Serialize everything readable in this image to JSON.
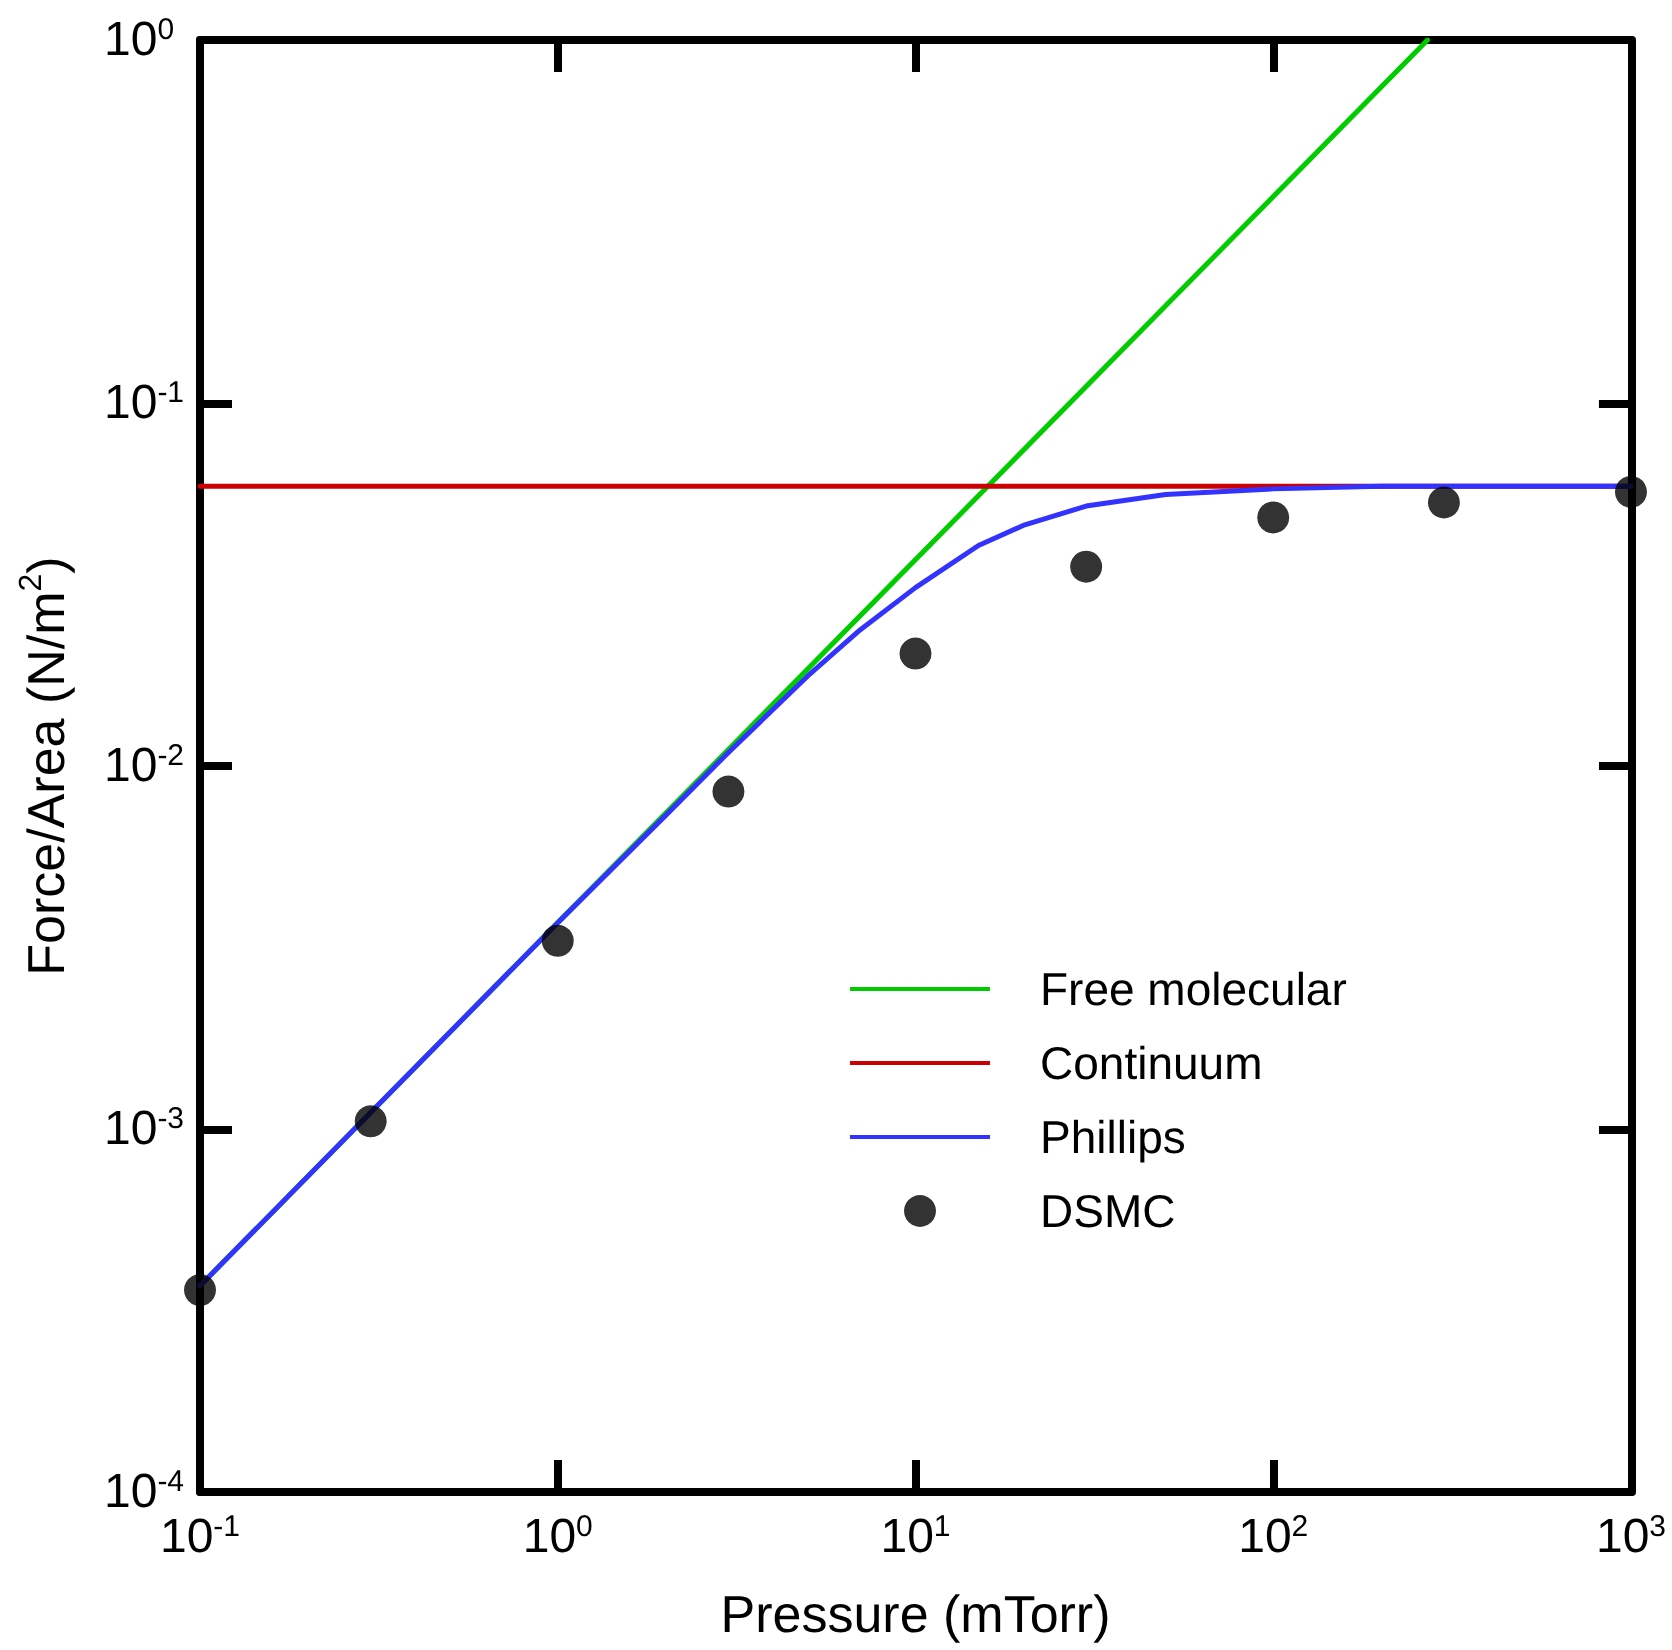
{
  "chart_data": {
    "type": "line",
    "xlabel": "Pressure (mTorr)",
    "ylabel": "Force/Area (N/m$^{2}$)",
    "log": "xy",
    "grid": false,
    "legend": "right",
    "marker": "none",
    "xlim": [
      0.1,
      1000
    ],
    "ylim": [
      0.0001,
      1
    ],
    "xticks": [
      {
        "value": 0.1,
        "label": "10$^{-1}$"
      },
      {
        "value": 1,
        "label": "10$^{0}$"
      },
      {
        "value": 10,
        "label": "10$^{1}$"
      },
      {
        "value": 100,
        "label": "10$^{2}$"
      },
      {
        "value": 1000,
        "label": "10$^{3}$"
      }
    ],
    "yticks": [
      {
        "value": 0.0001,
        "label": "10$^{-4}$"
      },
      {
        "value": 0.001,
        "label": "10$^{-3}$"
      },
      {
        "value": 0.01,
        "label": "10$^{-2}$"
      },
      {
        "value": 0.1,
        "label": "10$^{-1}$"
      },
      {
        "value": 1,
        "label": "10$^{0}$"
      }
    ],
    "series": [
      {
        "name": "Free molecular",
        "color": "#00cc00",
        "x": [
          0.1,
          270
        ],
        "values": [
          0.00037,
          1
        ]
      },
      {
        "name": "Continuum",
        "color": "#cc0000",
        "x": [
          0.1,
          1000
        ],
        "values": [
          0.059,
          0.059
        ]
      },
      {
        "name": "Phillips",
        "color": "#3333ff",
        "x": [
          0.1,
          0.3,
          1,
          2,
          3,
          5,
          7,
          10,
          15,
          20,
          30,
          50,
          100,
          200,
          1000
        ],
        "values": [
          0.00037,
          0.00111,
          0.0037,
          0.0073,
          0.0109,
          0.0177,
          0.0237,
          0.031,
          0.0405,
          0.046,
          0.052,
          0.056,
          0.058,
          0.059,
          0.059
        ]
      },
      {
        "name": "DSMC",
        "type": "scatter",
        "marker": "circle",
        "color": "#000000",
        "x": [
          0.1,
          0.3,
          1,
          3,
          10,
          30,
          100,
          300,
          1000
        ],
        "values": [
          0.00036,
          0.00105,
          0.0033,
          0.0085,
          0.0204,
          0.0354,
          0.0484,
          0.0532,
          0.0569
        ]
      }
    ]
  }
}
